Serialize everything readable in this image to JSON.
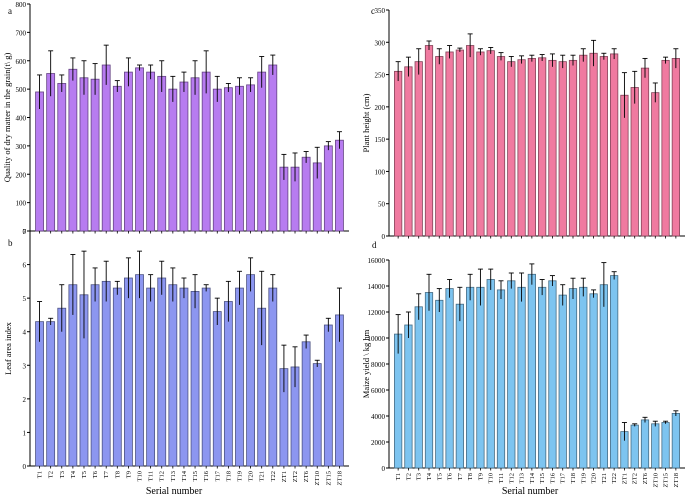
{
  "figure": {
    "categories": [
      "T1",
      "T2",
      "T3",
      "T4",
      "T5",
      "T6",
      "T7",
      "T8",
      "T9",
      "T10",
      "T11",
      "T12",
      "T13",
      "T14",
      "T15",
      "T16",
      "T17",
      "T18",
      "T19",
      "T20",
      "T21",
      "T22",
      "ZT1",
      "ZT2",
      "ZT6",
      "ZT10",
      "ZT15",
      "ZT18"
    ],
    "xlabel_left": "Serial number",
    "xlabel_right": "Serial number"
  },
  "chart_data": [
    {
      "id": "a",
      "type": "bar",
      "panel_letter": "a",
      "ylabel": "Quality of dry matter in the grain(t\\ g)",
      "ylim": [
        0,
        800
      ],
      "yticks": [
        0,
        100,
        200,
        300,
        400,
        500,
        600,
        700,
        800
      ],
      "grid": false,
      "color": "#b77cf0",
      "values": [
        490,
        555,
        520,
        570,
        540,
        535,
        585,
        510,
        560,
        575,
        560,
        545,
        500,
        525,
        540,
        560,
        500,
        505,
        510,
        515,
        560,
        585,
        225,
        225,
        260,
        240,
        300,
        320
      ],
      "errors": [
        60,
        80,
        30,
        40,
        60,
        55,
        70,
        20,
        50,
        10,
        25,
        55,
        45,
        35,
        60,
        75,
        45,
        15,
        30,
        25,
        55,
        35,
        45,
        50,
        20,
        55,
        15,
        30
      ]
    },
    {
      "id": "c",
      "type": "bar",
      "panel_letter": "c",
      "ylabel": "Plant height (cm)",
      "ylim": [
        0,
        350
      ],
      "yticks": [
        0,
        50,
        100,
        150,
        200,
        250,
        300,
        350
      ],
      "grid": false,
      "color": "#f07aa0",
      "values": [
        255,
        262,
        270,
        295,
        278,
        285,
        288,
        295,
        285,
        287,
        278,
        270,
        273,
        275,
        276,
        272,
        270,
        272,
        280,
        283,
        278,
        282,
        218,
        230,
        260,
        222,
        272,
        275
      ],
      "errors": [
        15,
        15,
        20,
        7,
        12,
        10,
        3,
        18,
        5,
        5,
        6,
        8,
        6,
        5,
        5,
        10,
        10,
        8,
        10,
        20,
        5,
        8,
        35,
        25,
        15,
        15,
        5,
        15
      ]
    },
    {
      "id": "b",
      "type": "bar",
      "panel_letter": "b",
      "ylabel": "Leaf area index",
      "ylim": [
        0,
        7
      ],
      "yticks": [
        0,
        1,
        2,
        3,
        4,
        5,
        6,
        7
      ],
      "grid": false,
      "color": "#8c96f0",
      "values": [
        4.3,
        4.3,
        4.7,
        5.4,
        5.1,
        5.4,
        5.5,
        5.3,
        5.6,
        5.7,
        5.3,
        5.6,
        5.4,
        5.3,
        5.2,
        5.3,
        4.6,
        4.9,
        5.3,
        5.7,
        4.7,
        5.3,
        2.9,
        2.95,
        3.7,
        3.05,
        4.2,
        4.5
      ],
      "errors": [
        0.6,
        0.1,
        0.7,
        0.9,
        1.3,
        0.5,
        0.6,
        0.2,
        0.6,
        0.7,
        0.4,
        0.5,
        0.5,
        0.3,
        0.5,
        0.1,
        0.4,
        0.6,
        0.5,
        0.5,
        1.1,
        0.4,
        0.7,
        0.6,
        0.2,
        0.1,
        0.2,
        0.8
      ]
    },
    {
      "id": "d",
      "type": "bar",
      "panel_letter": "d",
      "ylabel": "Maize yield \\ kg hm",
      "ylim": [
        0,
        16000
      ],
      "yticks": [
        0,
        2000,
        4000,
        6000,
        8000,
        10000,
        12000,
        14000,
        16000
      ],
      "grid": false,
      "color": "#7dc4f0",
      "values": [
        10300,
        11000,
        12400,
        13500,
        12900,
        13800,
        12600,
        13900,
        13900,
        14500,
        13700,
        14400,
        13900,
        14900,
        13900,
        14400,
        13300,
        13800,
        13900,
        13400,
        14100,
        14800,
        2800,
        3300,
        3700,
        3400,
        3500,
        4200
      ],
      "errors": [
        1500,
        1000,
        1000,
        1400,
        900,
        700,
        1300,
        1000,
        1400,
        800,
        700,
        600,
        1100,
        800,
        600,
        400,
        800,
        800,
        700,
        300,
        1700,
        300,
        700,
        100,
        200,
        200,
        100,
        200
      ]
    }
  ]
}
